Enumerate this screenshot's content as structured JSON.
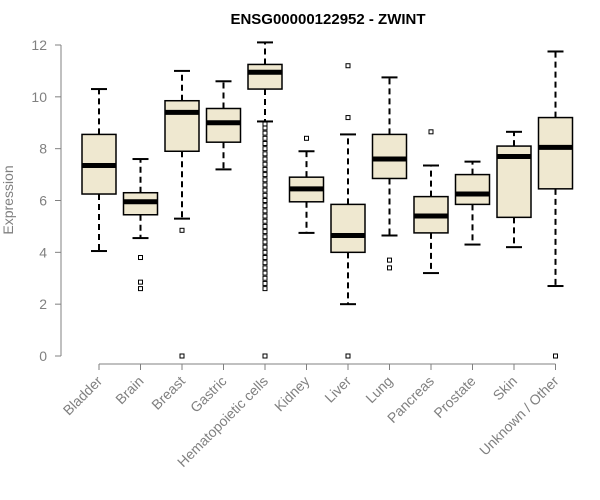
{
  "chart_data": {
    "type": "boxplot",
    "title": "ENSG00000122952 - ZWINT",
    "xlabel": "",
    "ylabel": "Expression",
    "ylim": [
      0,
      12
    ],
    "yticks": [
      0,
      2,
      4,
      6,
      8,
      10,
      12
    ],
    "grid": false,
    "legend": "none",
    "colors": {
      "box_fill": "#efe8d0",
      "box_stroke": "#000000",
      "axis": "#808080"
    },
    "categories": [
      "Bladder",
      "Brain",
      "Breast",
      "Gastric",
      "Hematopoietic cells",
      "Kidney",
      "Liver",
      "Lung",
      "Pancreas",
      "Prostate",
      "Skin",
      "Unknown / Other"
    ],
    "boxes": [
      {
        "category": "Bladder",
        "whisker_low": 4.05,
        "q1": 6.25,
        "median": 7.35,
        "q3": 8.55,
        "whisker_high": 10.3,
        "outliers": []
      },
      {
        "category": "Brain",
        "whisker_low": 4.55,
        "q1": 5.45,
        "median": 5.95,
        "q3": 6.3,
        "whisker_high": 7.6,
        "outliers": [
          3.8,
          2.85,
          2.6
        ]
      },
      {
        "category": "Breast",
        "whisker_low": 5.3,
        "q1": 7.9,
        "median": 9.4,
        "q3": 9.85,
        "whisker_high": 11.0,
        "outliers": [
          4.85,
          0.0
        ]
      },
      {
        "category": "Gastric",
        "whisker_low": 7.2,
        "q1": 8.25,
        "median": 9.0,
        "q3": 9.55,
        "whisker_high": 10.6,
        "outliers": []
      },
      {
        "category": "Hematopoietic cells",
        "whisker_low": 9.05,
        "q1": 10.3,
        "median": 10.95,
        "q3": 11.25,
        "whisker_high": 12.1,
        "outliers": [
          8.95,
          8.8,
          8.6,
          8.4,
          8.2,
          8.0,
          7.8,
          7.6,
          7.4,
          7.2,
          7.0,
          6.8,
          6.6,
          6.4,
          6.2,
          6.0,
          5.8,
          5.6,
          5.4,
          5.2,
          5.0,
          4.8,
          4.6,
          4.4,
          4.2,
          4.0,
          3.8,
          3.6,
          3.4,
          3.2,
          3.0,
          2.8,
          2.6,
          0.0
        ]
      },
      {
        "category": "Kidney",
        "whisker_low": 4.75,
        "q1": 5.95,
        "median": 6.45,
        "q3": 6.9,
        "whisker_high": 7.9,
        "outliers": [
          8.4
        ]
      },
      {
        "category": "Liver",
        "whisker_low": 2.0,
        "q1": 4.0,
        "median": 4.65,
        "q3": 5.85,
        "whisker_high": 8.55,
        "outliers": [
          9.2,
          11.2,
          0.0
        ]
      },
      {
        "category": "Lung",
        "whisker_low": 4.65,
        "q1": 6.85,
        "median": 7.6,
        "q3": 8.55,
        "whisker_high": 10.75,
        "outliers": [
          3.7,
          3.4
        ]
      },
      {
        "category": "Pancreas",
        "whisker_low": 3.2,
        "q1": 4.75,
        "median": 5.4,
        "q3": 6.15,
        "whisker_high": 7.35,
        "outliers": [
          8.65
        ]
      },
      {
        "category": "Prostate",
        "whisker_low": 4.3,
        "q1": 5.85,
        "median": 6.25,
        "q3": 7.0,
        "whisker_high": 7.5,
        "outliers": []
      },
      {
        "category": "Skin",
        "whisker_low": 4.2,
        "q1": 5.35,
        "median": 7.7,
        "q3": 8.1,
        "whisker_high": 8.65,
        "outliers": []
      },
      {
        "category": "Unknown / Other",
        "whisker_low": 2.7,
        "q1": 6.45,
        "median": 8.05,
        "q3": 9.2,
        "whisker_high": 11.75,
        "outliers": [
          0.0
        ]
      }
    ]
  }
}
